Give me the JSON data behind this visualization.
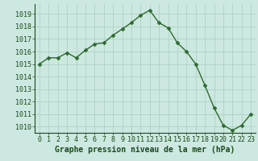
{
  "x": [
    0,
    1,
    2,
    3,
    4,
    5,
    6,
    7,
    8,
    9,
    10,
    11,
    12,
    13,
    14,
    15,
    16,
    17,
    18,
    19,
    20,
    21,
    22,
    23
  ],
  "y": [
    1015.0,
    1015.5,
    1015.5,
    1015.9,
    1015.5,
    1016.1,
    1016.6,
    1016.7,
    1017.3,
    1017.8,
    1018.3,
    1018.9,
    1019.3,
    1018.3,
    1017.9,
    1016.7,
    1016.0,
    1015.0,
    1013.3,
    1011.5,
    1010.1,
    1009.7,
    1010.1,
    1011.0
  ],
  "line_color": "#2d6a2d",
  "marker": "D",
  "marker_size": 2.5,
  "line_width": 1.0,
  "bg_color": "#cce8e0",
  "grid_color": "#aaccc4",
  "xlabel": "Graphe pression niveau de la mer (hPa)",
  "xlabel_color": "#1a4a1a",
  "xlabel_fontsize": 7.0,
  "tick_color": "#1a4a1a",
  "tick_fontsize": 6.0,
  "ylim": [
    1009.5,
    1019.8
  ],
  "xlim": [
    -0.5,
    23.5
  ],
  "yticks": [
    1010,
    1011,
    1012,
    1013,
    1014,
    1015,
    1016,
    1017,
    1018,
    1019
  ],
  "xticks": [
    0,
    1,
    2,
    3,
    4,
    5,
    6,
    7,
    8,
    9,
    10,
    11,
    12,
    13,
    14,
    15,
    16,
    17,
    18,
    19,
    20,
    21,
    22,
    23
  ]
}
